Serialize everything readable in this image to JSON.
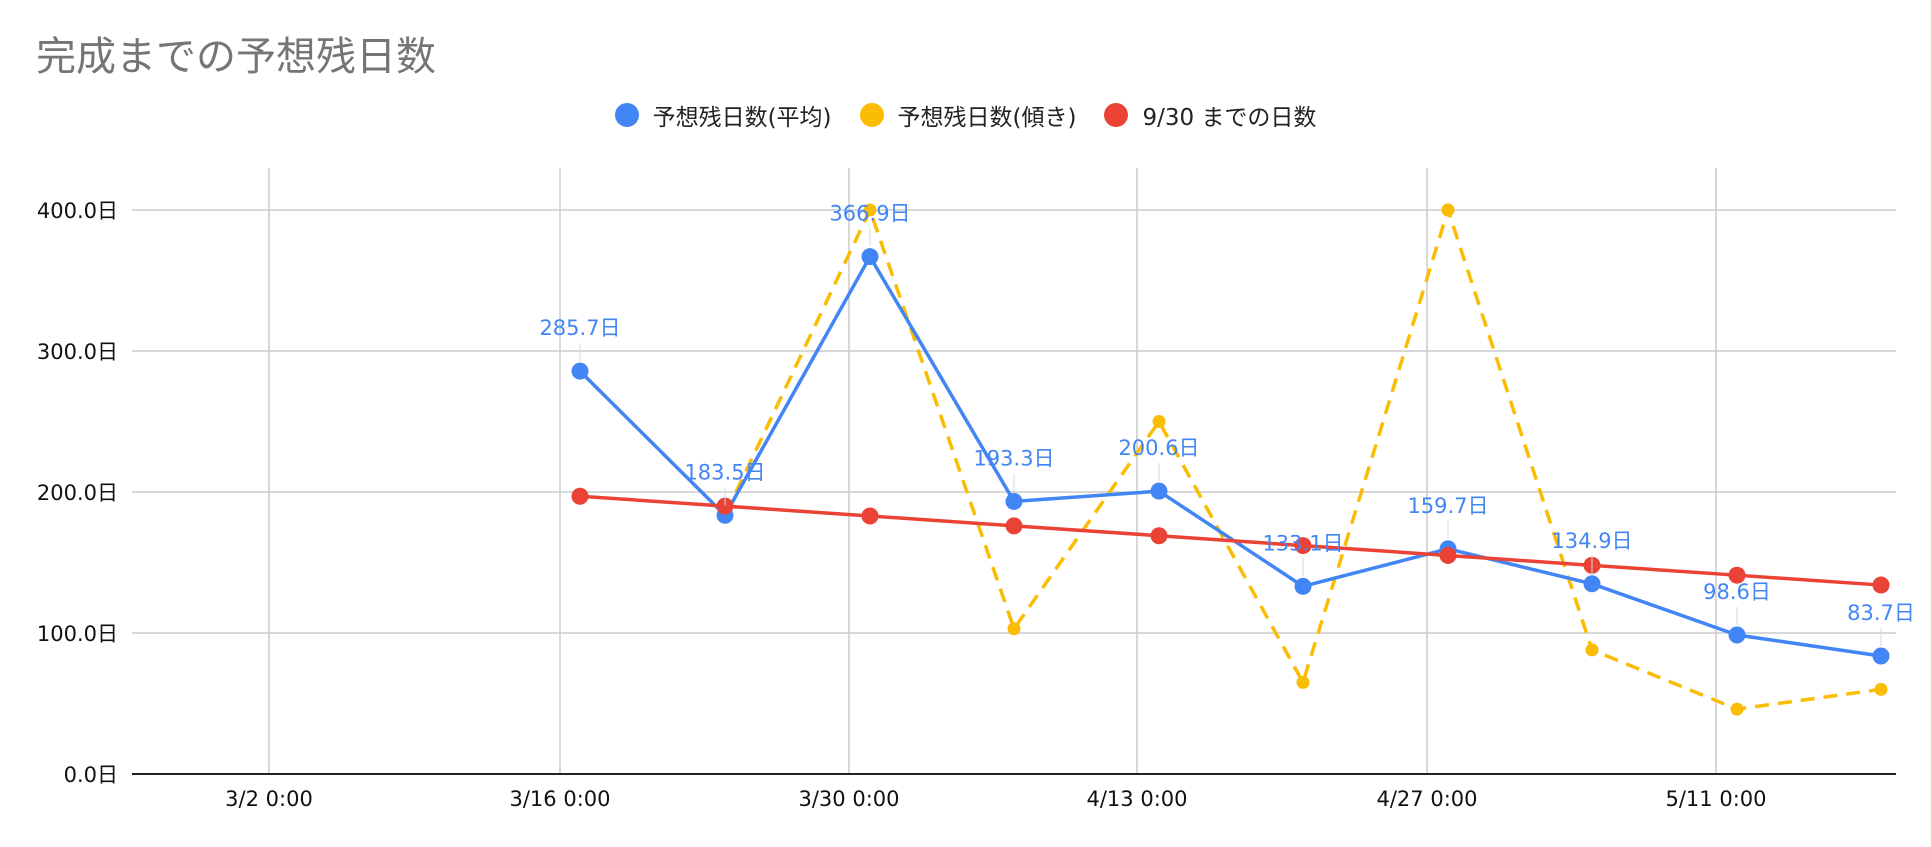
{
  "chart_data": {
    "type": "line",
    "title": "完成までの予想残日数",
    "xlabel": "",
    "ylabel": "",
    "ylim": [
      0,
      400
    ],
    "y_ticks": [
      "0.0日",
      "100.0日",
      "200.0日",
      "300.0日",
      "400.0日"
    ],
    "x_ticks": [
      "3/2 0:00",
      "3/16 0:00",
      "3/30 0:00",
      "4/13 0:00",
      "4/27 0:00",
      "5/11 0:00"
    ],
    "x": [
      "3/17",
      "3/24",
      "3/31",
      "4/7",
      "4/14",
      "4/21",
      "4/28",
      "5/5",
      "5/12",
      "5/19"
    ],
    "legend_position": "top",
    "grid": true,
    "series": [
      {
        "name": "予想残日数(平均)",
        "color": "#4285F4",
        "style": "solid",
        "values": [
          285.7,
          183.5,
          366.9,
          193.3,
          200.6,
          133.1,
          159.7,
          134.9,
          98.6,
          83.7
        ],
        "labels": [
          "285.7日",
          "183.5日",
          "366.9日",
          "193.3日",
          "200.6日",
          "133.1日",
          "159.7日",
          "134.9日",
          "98.6日",
          "83.7日"
        ]
      },
      {
        "name": "予想残日数(傾き)",
        "color": "#FBBC04",
        "style": "dashed",
        "values": [
          285.7,
          183.5,
          400,
          103,
          250,
          65,
          400,
          88,
          46,
          60
        ]
      },
      {
        "name": "9/30 までの日数",
        "color": "#EA4335",
        "style": "solid",
        "values": [
          197,
          190,
          183,
          176,
          169,
          162,
          155,
          148,
          141,
          134
        ]
      }
    ]
  }
}
